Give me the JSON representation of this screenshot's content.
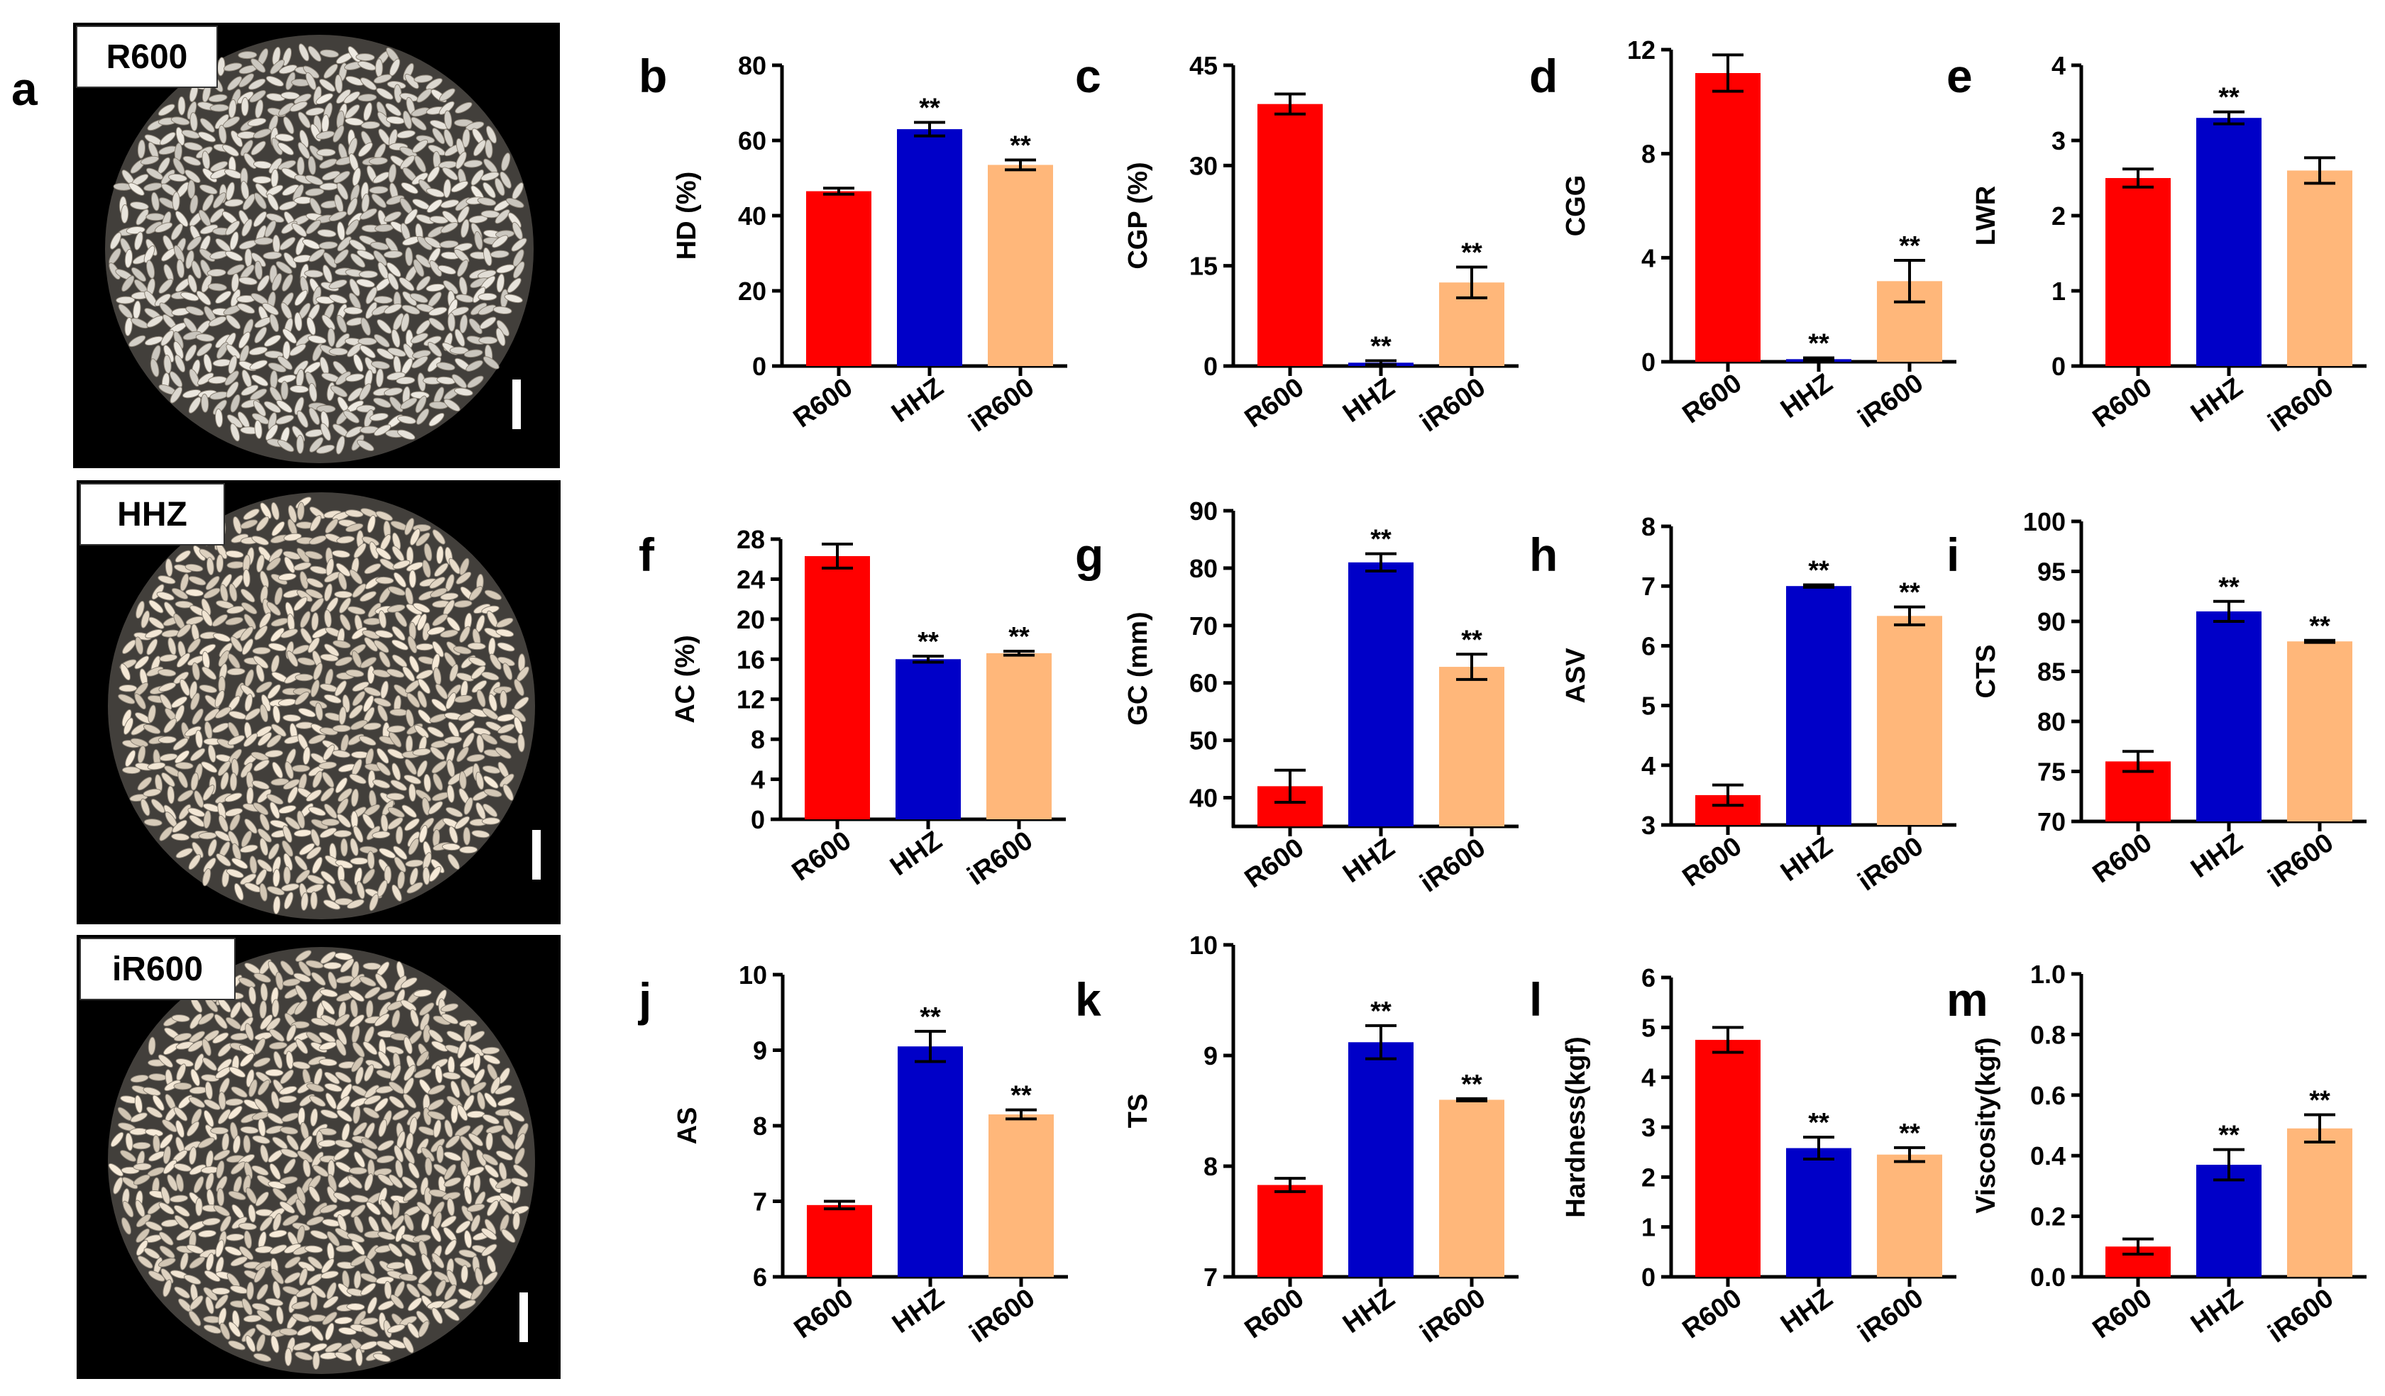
{
  "panel_a": {
    "letter": "a",
    "images": [
      {
        "label": "R600"
      },
      {
        "label": "HHZ"
      },
      {
        "label": "iR600"
      }
    ]
  },
  "colors": {
    "R600": "#ff0000",
    "HHZ": "#0000c8",
    "iR600": "#ffb77a",
    "axis": "#000000",
    "photo_bg": "#000000",
    "grain": "#d9d2c6"
  },
  "chart_data": [
    {
      "letter": "b",
      "type": "bar",
      "ylabel": "HD (%)",
      "categories": [
        "R600",
        "HHZ",
        "iR600"
      ],
      "values": [
        46.5,
        63,
        53.5
      ],
      "errors": [
        0.8,
        1.8,
        1.3
      ],
      "ylim": [
        0,
        80
      ],
      "yticks": [
        0,
        20,
        40,
        60,
        80
      ],
      "ytick_labels": [
        "0",
        "20",
        "40",
        "60",
        "80"
      ],
      "significance": [
        "",
        "**",
        "**"
      ]
    },
    {
      "letter": "c",
      "type": "bar",
      "ylabel": "CGP (%)",
      "categories": [
        "R600",
        "HHZ",
        "iR600"
      ],
      "values": [
        39.2,
        0.5,
        12.5
      ],
      "errors": [
        1.5,
        0.3,
        2.3
      ],
      "ylim": [
        0,
        45
      ],
      "yticks": [
        0,
        15,
        30,
        45
      ],
      "ytick_labels": [
        "0",
        "15",
        "30",
        "45"
      ],
      "significance": [
        "",
        "**",
        "**"
      ]
    },
    {
      "letter": "d",
      "type": "bar",
      "ylabel": "CGG",
      "categories": [
        "R600",
        "HHZ",
        "iR600"
      ],
      "values": [
        11.1,
        0.1,
        3.1
      ],
      "errors": [
        0.7,
        0.05,
        0.8
      ],
      "ylim": [
        0,
        12
      ],
      "yticks": [
        0,
        4,
        8,
        12
      ],
      "ytick_labels": [
        "0",
        "4",
        "8",
        "12"
      ],
      "significance": [
        "",
        "**",
        "**"
      ]
    },
    {
      "letter": "e",
      "type": "bar",
      "ylabel": "LWR",
      "categories": [
        "R600",
        "HHZ",
        "iR600"
      ],
      "values": [
        2.5,
        3.3,
        2.6
      ],
      "errors": [
        0.12,
        0.08,
        0.17
      ],
      "ylim": [
        0,
        4
      ],
      "yticks": [
        0,
        1,
        2,
        3,
        4
      ],
      "ytick_labels": [
        "0",
        "1",
        "2",
        "3",
        "4"
      ],
      "significance": [
        "",
        "**",
        ""
      ]
    },
    {
      "letter": "f",
      "type": "bar",
      "ylabel": "AC (%)",
      "categories": [
        "R600",
        "HHZ",
        "iR600"
      ],
      "values": [
        26.3,
        16,
        16.6
      ],
      "errors": [
        1.2,
        0.3,
        0.2
      ],
      "ylim": [
        0,
        28
      ],
      "yticks": [
        0,
        4,
        8,
        12,
        16,
        20,
        24,
        28
      ],
      "ytick_labels": [
        "0",
        "4",
        "8",
        "12",
        "16",
        "20",
        "24",
        "28"
      ],
      "significance": [
        "",
        "**",
        "**"
      ]
    },
    {
      "letter": "g",
      "type": "bar",
      "ylabel": "GC (mm)",
      "categories": [
        "R600",
        "HHZ",
        "iR600"
      ],
      "values": [
        42,
        81,
        62.8
      ],
      "errors": [
        2.8,
        1.5,
        2.2
      ],
      "ylim": [
        35,
        90
      ],
      "yticks": [
        40,
        50,
        60,
        70,
        80,
        90
      ],
      "ytick_labels": [
        "40",
        "50",
        "60",
        "70",
        "80",
        "90"
      ],
      "significance": [
        "",
        "**",
        "**"
      ]
    },
    {
      "letter": "h",
      "type": "bar",
      "ylabel": "ASV",
      "categories": [
        "R600",
        "HHZ",
        "iR600"
      ],
      "values": [
        3.5,
        7,
        6.5
      ],
      "errors": [
        0.17,
        0.02,
        0.15
      ],
      "ylim": [
        3,
        8
      ],
      "yticks": [
        3,
        4,
        5,
        6,
        7,
        8
      ],
      "ytick_labels": [
        "3",
        "4",
        "5",
        "6",
        "7",
        "8"
      ],
      "significance": [
        "",
        "**",
        "**"
      ]
    },
    {
      "letter": "i",
      "type": "bar",
      "ylabel": "CTS",
      "categories": [
        "R600",
        "HHZ",
        "iR600"
      ],
      "values": [
        76,
        91,
        88
      ],
      "errors": [
        1,
        1,
        0.1
      ],
      "ylim": [
        70,
        100
      ],
      "yticks": [
        70,
        75,
        80,
        85,
        90,
        95,
        100
      ],
      "ytick_labels": [
        "70",
        "75",
        "80",
        "85",
        "90",
        "95",
        "100"
      ],
      "significance": [
        "",
        "**",
        "**"
      ]
    },
    {
      "letter": "j",
      "type": "bar",
      "ylabel": "AS",
      "categories": [
        "R600",
        "HHZ",
        "iR600"
      ],
      "values": [
        6.95,
        9.05,
        8.15
      ],
      "errors": [
        0.05,
        0.2,
        0.06
      ],
      "ylim": [
        6,
        10
      ],
      "yticks": [
        6,
        7,
        8,
        9,
        10
      ],
      "ytick_labels": [
        "6",
        "7",
        "8",
        "9",
        "10"
      ],
      "significance": [
        "",
        "**",
        "**"
      ]
    },
    {
      "letter": "k",
      "type": "bar",
      "ylabel": "TS",
      "categories": [
        "R600",
        "HHZ",
        "iR600"
      ],
      "values": [
        7.83,
        9.12,
        8.6
      ],
      "errors": [
        0.06,
        0.15,
        0.01
      ],
      "ylim": [
        7,
        10
      ],
      "yticks": [
        7,
        8,
        9,
        10
      ],
      "ytick_labels": [
        "7",
        "8",
        "9",
        "10"
      ],
      "significance": [
        "",
        "**",
        "**"
      ]
    },
    {
      "letter": "l",
      "type": "bar",
      "ylabel": "Hardness(kgf)",
      "categories": [
        "R600",
        "HHZ",
        "iR600"
      ],
      "values": [
        4.75,
        2.58,
        2.45
      ],
      "errors": [
        0.25,
        0.22,
        0.14
      ],
      "ylim": [
        0,
        6
      ],
      "yticks": [
        0,
        1,
        2,
        3,
        4,
        5,
        6
      ],
      "ytick_labels": [
        "0",
        "1",
        "2",
        "3",
        "4",
        "5",
        "6"
      ],
      "significance": [
        "",
        "**",
        "**"
      ]
    },
    {
      "letter": "m",
      "type": "bar",
      "ylabel": "Viscosity(kgf)",
      "categories": [
        "R600",
        "HHZ",
        "iR600"
      ],
      "values": [
        0.1,
        0.37,
        0.49
      ],
      "errors": [
        0.025,
        0.05,
        0.045
      ],
      "ylim": [
        0,
        1
      ],
      "yticks": [
        0,
        0.2,
        0.4,
        0.6,
        0.8,
        1
      ],
      "ytick_labels": [
        "0.0",
        "0.2",
        "0.4",
        "0.6",
        "0.8",
        "1.0"
      ],
      "significance": [
        "",
        "**",
        "**"
      ]
    }
  ]
}
